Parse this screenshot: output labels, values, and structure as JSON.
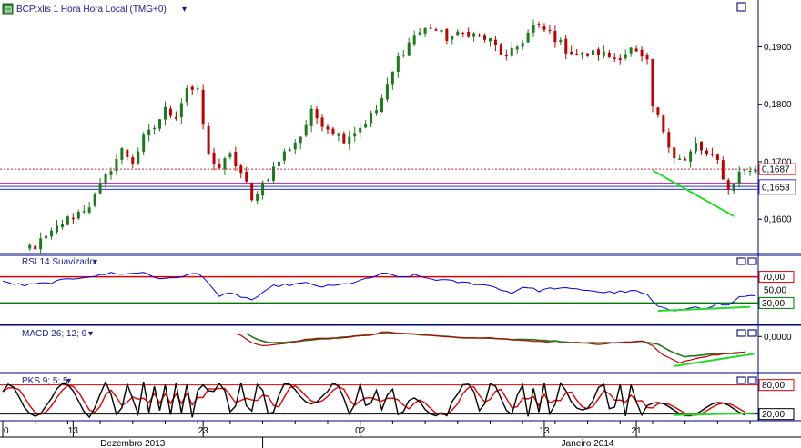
{
  "chart_data": {
    "type": "candlestick",
    "colors": {
      "up": "#1c7a1c",
      "down": "#c00000",
      "axis": "#000080",
      "rsi_line": "#0000dd",
      "rsi_upper": "#e00000",
      "rsi_lower": "#007700",
      "macd_line": "#c00000",
      "signal_line": "#1c7a1c",
      "k_line": "#000000",
      "d_line": "#e00000",
      "trend": "#22dd22",
      "h_line_red": "#dd2222",
      "h_line_blue": "#3333cc",
      "h_line_purple": "#993399"
    },
    "price_panel": {
      "title": "BCP:xlis 1 Hora Hora Local (TMG+0)",
      "ylim": [
        0.1545,
        0.1975
      ],
      "y_ticks": [
        "0,1900",
        "0,1800",
        "0,1700",
        "0,1600"
      ],
      "y_tick_values": [
        0.19,
        0.18,
        0.17,
        0.16
      ],
      "last_price_label": "0,1687",
      "level_label": "0,1653",
      "levels": [
        {
          "value": 0.1687,
          "color": "h_line_red",
          "style": "dotted"
        },
        {
          "value": 0.1663,
          "color": "h_line_purple",
          "style": "solid"
        },
        {
          "value": 0.1657,
          "color": "h_line_blue",
          "style": "solid"
        },
        {
          "value": 0.1652,
          "color": "h_line_blue",
          "style": "solid"
        }
      ],
      "anchors": [
        [
          0,
          0.1548
        ],
        [
          6,
          0.1553
        ],
        [
          9,
          0.1575
        ],
        [
          11,
          0.1595
        ],
        [
          13,
          0.1605
        ],
        [
          16,
          0.1625
        ],
        [
          18,
          0.1655
        ],
        [
          20,
          0.169
        ],
        [
          22,
          0.172
        ],
        [
          24,
          0.17
        ],
        [
          26,
          0.174
        ],
        [
          28,
          0.176
        ],
        [
          30,
          0.179
        ],
        [
          32,
          0.178
        ],
        [
          34,
          0.183
        ],
        [
          36,
          0.182
        ],
        [
          38,
          0.171
        ],
        [
          40,
          0.169
        ],
        [
          42,
          0.171
        ],
        [
          44,
          0.168
        ],
        [
          45,
          0.166
        ],
        [
          46,
          0.163
        ],
        [
          47,
          0.165
        ],
        [
          49,
          0.1675
        ],
        [
          52,
          0.1715
        ],
        [
          55,
          0.1745
        ],
        [
          57,
          0.1785
        ],
        [
          60,
          0.176
        ],
        [
          63,
          0.174
        ],
        [
          66,
          0.176
        ],
        [
          69,
          0.179
        ],
        [
          71,
          0.183
        ],
        [
          73,
          0.188
        ],
        [
          76,
          0.192
        ],
        [
          79,
          0.1935
        ],
        [
          82,
          0.1915
        ],
        [
          86,
          0.1925
        ],
        [
          90,
          0.191
        ],
        [
          93,
          0.188
        ],
        [
          95,
          0.19
        ],
        [
          98,
          0.1935
        ],
        [
          101,
          0.1925
        ],
        [
          104,
          0.1895
        ],
        [
          107,
          0.1885
        ],
        [
          110,
          0.189
        ],
        [
          113,
          0.188
        ],
        [
          116,
          0.1895
        ],
        [
          119,
          0.187
        ],
        [
          120,
          0.1795
        ],
        [
          122,
          0.1755
        ],
        [
          124,
          0.171
        ],
        [
          126,
          0.17
        ],
        [
          128,
          0.173
        ],
        [
          130,
          0.171
        ],
        [
          132,
          0.17
        ],
        [
          134,
          0.165
        ],
        [
          136,
          0.168
        ],
        [
          137,
          0.1687
        ]
      ],
      "trend_line": {
        "from": [
          120,
          0.1685
        ],
        "to": [
          135,
          0.1605
        ]
      }
    },
    "rsi_panel": {
      "title": "RSI 14 Suavizado",
      "ylim": [
        0,
        100
      ],
      "upper": 70,
      "lower": 30,
      "ticks": [
        "70,00",
        "50,00",
        "30,00"
      ],
      "tick_values": [
        70,
        50,
        30
      ],
      "anchors": [
        [
          0,
          62
        ],
        [
          4,
          57
        ],
        [
          8,
          60
        ],
        [
          10,
          63
        ],
        [
          12,
          66
        ],
        [
          15,
          70
        ],
        [
          18,
          72
        ],
        [
          20,
          76
        ],
        [
          23,
          74
        ],
        [
          26,
          77
        ],
        [
          28,
          70
        ],
        [
          30,
          66
        ],
        [
          33,
          71
        ],
        [
          36,
          75
        ],
        [
          38,
          62
        ],
        [
          40,
          40
        ],
        [
          42,
          44
        ],
        [
          44,
          40
        ],
        [
          46,
          35
        ],
        [
          48,
          44
        ],
        [
          50,
          56
        ],
        [
          53,
          58
        ],
        [
          56,
          60
        ],
        [
          59,
          55
        ],
        [
          62,
          57
        ],
        [
          65,
          62
        ],
        [
          68,
          68
        ],
        [
          70,
          76
        ],
        [
          73,
          69
        ],
        [
          76,
          72
        ],
        [
          79,
          67
        ],
        [
          82,
          64
        ],
        [
          85,
          61
        ],
        [
          88,
          59
        ],
        [
          91,
          54
        ],
        [
          94,
          45
        ],
        [
          96,
          55
        ],
        [
          99,
          49
        ],
        [
          102,
          53
        ],
        [
          105,
          51
        ],
        [
          108,
          50
        ],
        [
          111,
          46
        ],
        [
          114,
          47
        ],
        [
          117,
          48
        ],
        [
          119,
          42
        ],
        [
          121,
          23
        ],
        [
          124,
          19
        ],
        [
          127,
          24
        ],
        [
          130,
          21
        ],
        [
          132,
          29
        ],
        [
          134,
          26
        ],
        [
          136,
          38
        ],
        [
          137,
          41
        ]
      ],
      "trend_line": {
        "from": [
          121,
          18
        ],
        "to": [
          138,
          24
        ]
      }
    },
    "macd_panel": {
      "title": "MACD 26; 12; 9",
      "params": [
        26,
        12,
        9
      ],
      "ylim": [
        -0.0022,
        0.0006
      ],
      "ticks": [
        "0,0000"
      ],
      "tick_values": [
        0
      ],
      "macd": [
        [
          43,
          0.0002
        ],
        [
          44,
          0.0001
        ],
        [
          46,
          -0.0004
        ],
        [
          48,
          -0.0006
        ],
        [
          50,
          -0.0005
        ],
        [
          53,
          -0.0004
        ],
        [
          56,
          -0.0002
        ],
        [
          59,
          -0.0001
        ],
        [
          62,
          -0.0001
        ],
        [
          65,
          0.0
        ],
        [
          68,
          0.0001
        ],
        [
          70,
          0.0003
        ],
        [
          74,
          0.0002
        ],
        [
          78,
          0.0001
        ],
        [
          82,
          0.0
        ],
        [
          86,
          -0.0001
        ],
        [
          90,
          -0.0001
        ],
        [
          94,
          -0.0002
        ],
        [
          98,
          -0.0003
        ],
        [
          102,
          -0.0004
        ],
        [
          106,
          -0.0004
        ],
        [
          110,
          -0.0005
        ],
        [
          114,
          -0.0004
        ],
        [
          118,
          -0.0003
        ],
        [
          120,
          -0.0006
        ],
        [
          122,
          -0.0012
        ],
        [
          125,
          -0.0017
        ],
        [
          128,
          -0.0014
        ],
        [
          131,
          -0.0012
        ],
        [
          134,
          -0.0011
        ],
        [
          137,
          -0.001
        ]
      ],
      "signal": [
        [
          45,
          0.0002
        ],
        [
          47,
          -0.0002
        ],
        [
          49,
          -0.0004
        ],
        [
          52,
          -0.0004
        ],
        [
          55,
          -0.0003
        ],
        [
          58,
          -0.0002
        ],
        [
          61,
          -0.0001
        ],
        [
          64,
          0.0
        ],
        [
          67,
          0.0001
        ],
        [
          70,
          0.0002
        ],
        [
          74,
          0.0002
        ],
        [
          78,
          0.0001
        ],
        [
          82,
          0.0
        ],
        [
          86,
          -0.0001
        ],
        [
          90,
          -0.0001
        ],
        [
          94,
          -0.0002
        ],
        [
          98,
          -0.0002
        ],
        [
          102,
          -0.0003
        ],
        [
          106,
          -0.0004
        ],
        [
          110,
          -0.0004
        ],
        [
          114,
          -0.0004
        ],
        [
          118,
          -0.0003
        ],
        [
          121,
          -0.0005
        ],
        [
          123,
          -0.0009
        ],
        [
          126,
          -0.0013
        ],
        [
          129,
          -0.0012
        ],
        [
          132,
          -0.0011
        ],
        [
          135,
          -0.0011
        ],
        [
          137,
          -0.001
        ]
      ],
      "trend_line": {
        "from": [
          124,
          -0.0019
        ],
        "to": [
          139,
          -0.0011
        ]
      }
    },
    "pks_panel": {
      "title": "PKS 9; 5; 5",
      "params": [
        9,
        5,
        5
      ],
      "ylim": [
        10,
        100
      ],
      "upper": 80,
      "lower": 20,
      "ticks": [
        "80,00",
        "20,00"
      ],
      "tick_values": [
        80,
        20
      ],
      "trend_line": {
        "from": [
          124,
          18
        ],
        "to": [
          139,
          22
        ]
      }
    },
    "x_axis": {
      "n_bars": 140,
      "ticks": [
        {
          "bar": 0,
          "label": "0"
        },
        {
          "bar": 13,
          "label": "13"
        },
        {
          "bar": 37,
          "label": "23"
        },
        {
          "bar": 66,
          "label": "02"
        },
        {
          "bar": 100,
          "label": "13"
        },
        {
          "bar": 117,
          "label": "21"
        }
      ],
      "month_labels": [
        {
          "bar": 24,
          "label": "Dezembro 2013"
        },
        {
          "bar": 108,
          "label": "Janeiro 2014"
        }
      ],
      "month_divider_bar": 48
    }
  }
}
